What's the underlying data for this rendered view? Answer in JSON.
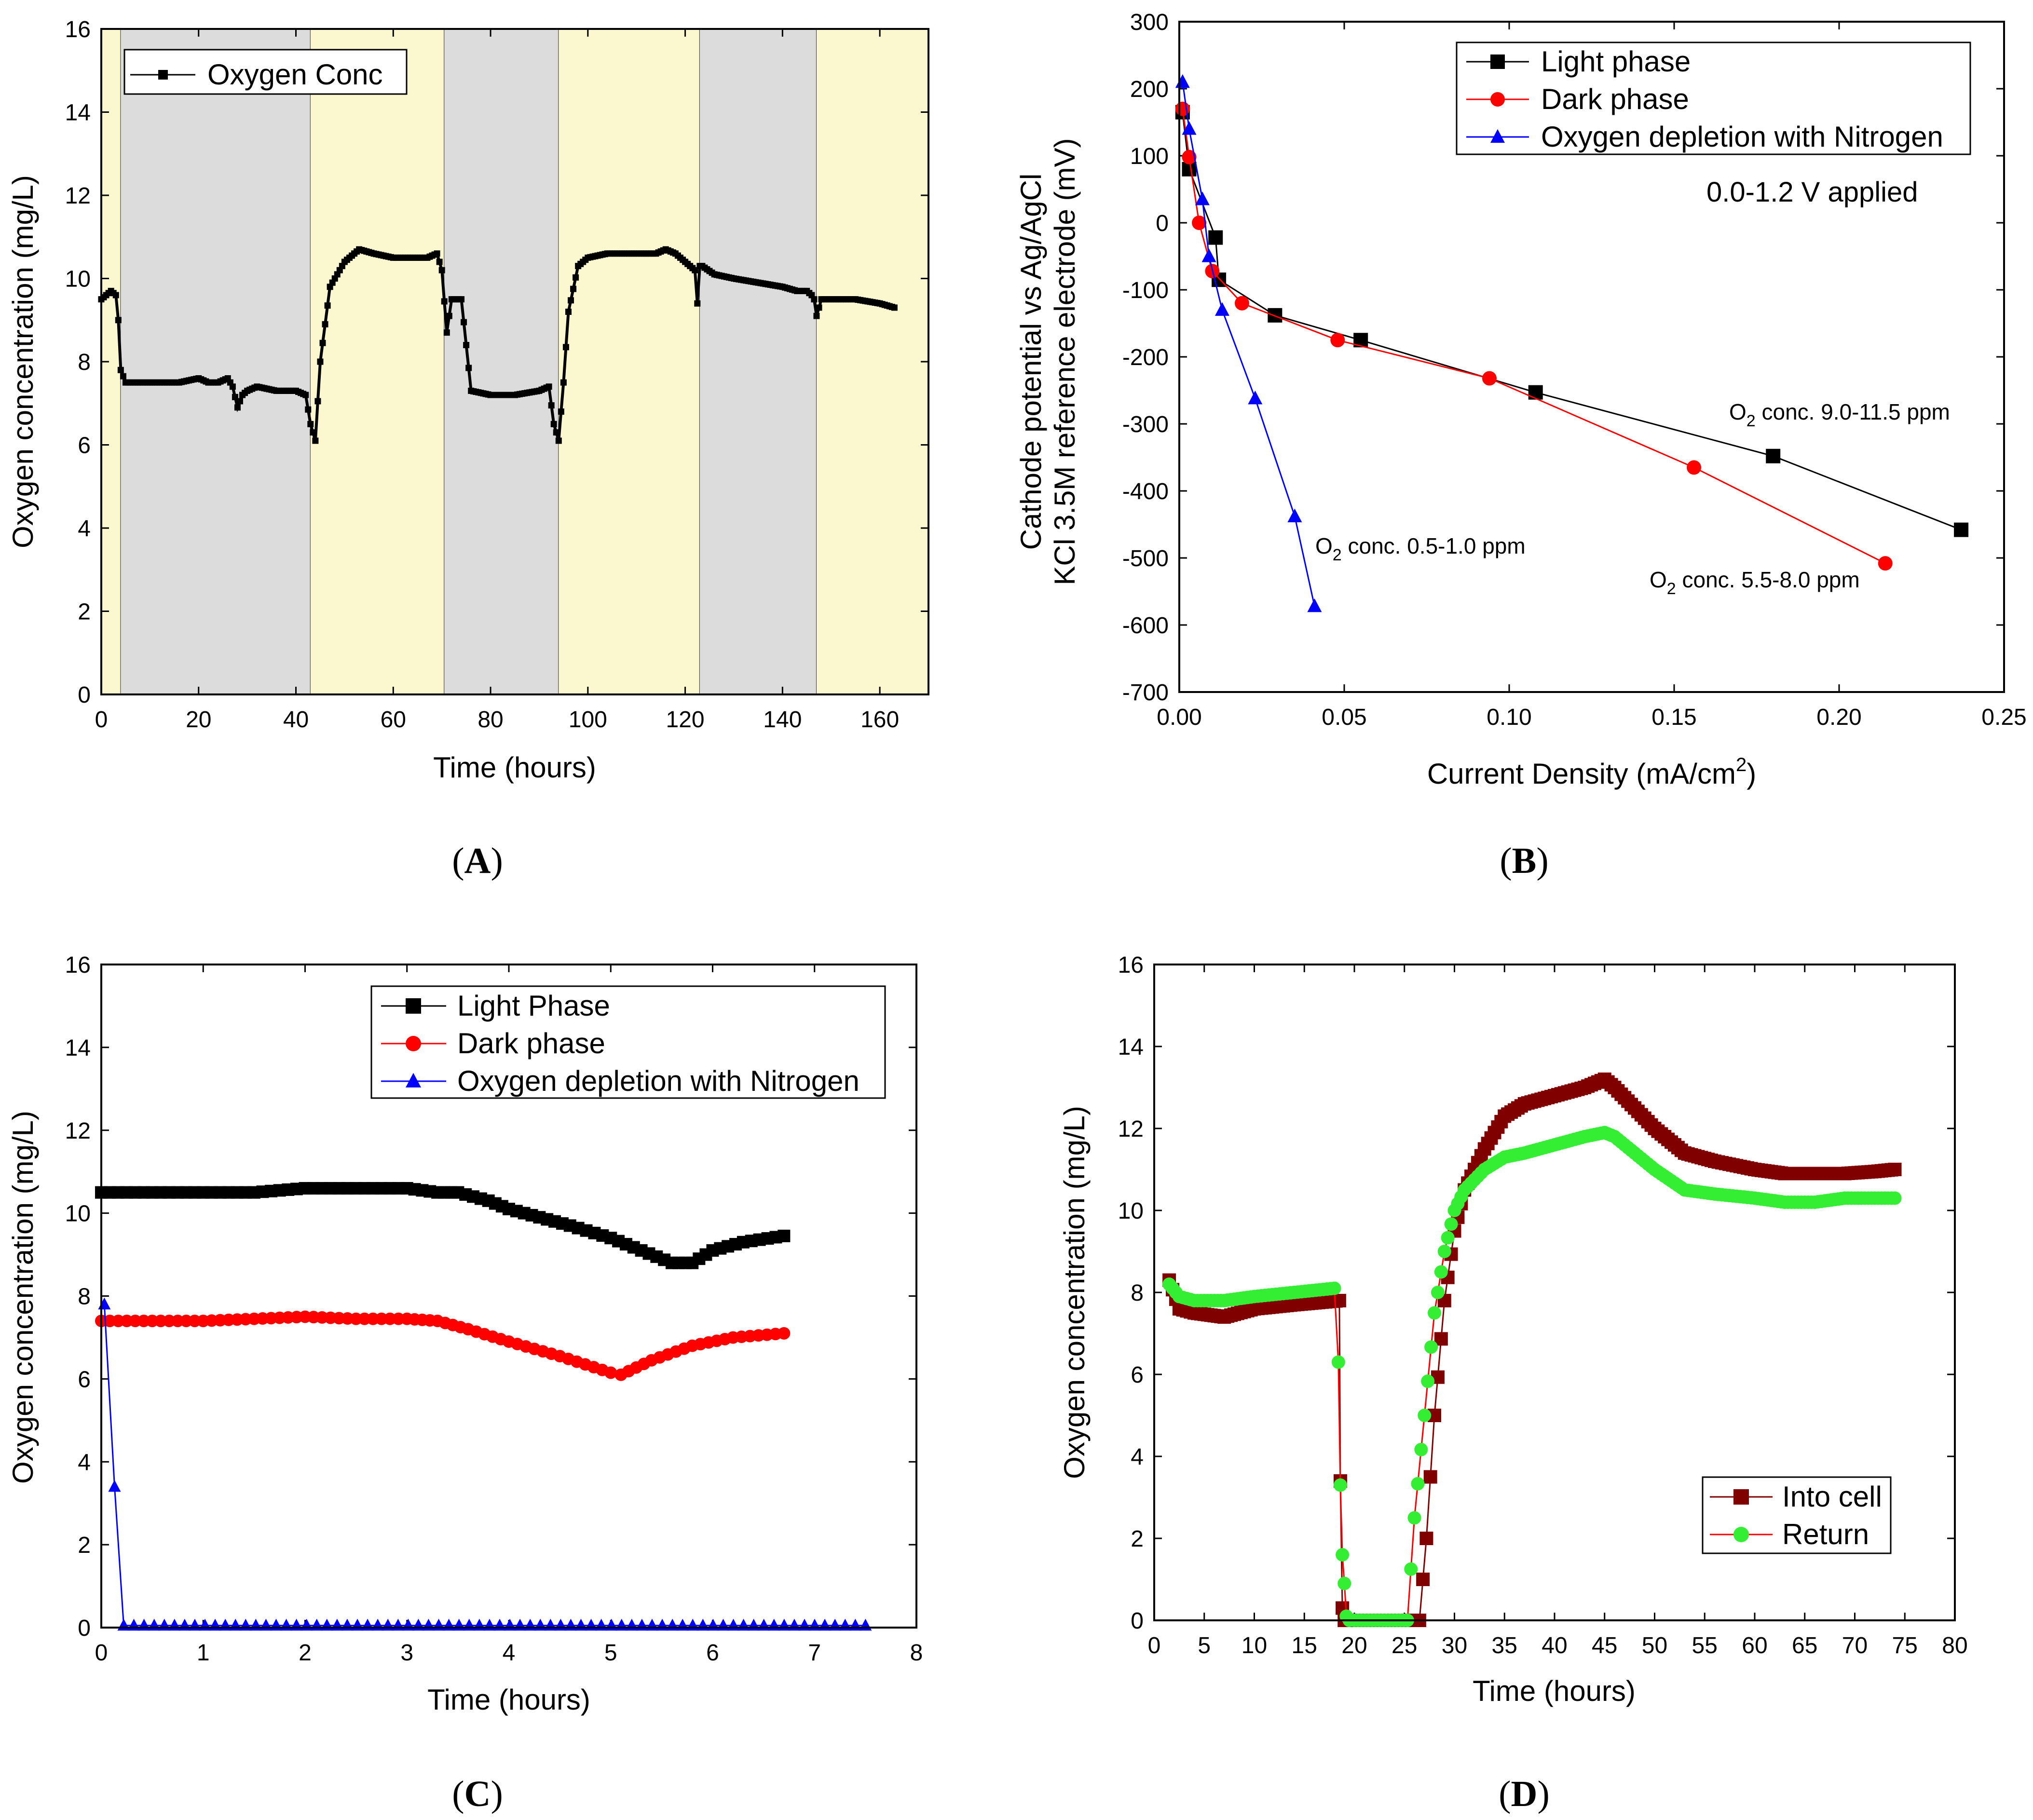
{
  "chart_data": [
    {
      "panel": "(A)",
      "panel_letter": "A",
      "type": "line",
      "xlabel": "Time (hours)",
      "ylabel": "Oxygen concentration (mg/L)",
      "xlim": [
        0,
        170
      ],
      "ylim": [
        0,
        16
      ],
      "xticks": [
        0,
        20,
        40,
        60,
        80,
        100,
        120,
        140,
        160
      ],
      "yticks": [
        0,
        2,
        4,
        6,
        8,
        10,
        12,
        14,
        16
      ],
      "legend": [
        "Oxygen Conc"
      ],
      "background_bands": [
        {
          "from": 0,
          "to": 4,
          "phase": "light",
          "color": "#fbf8cf"
        },
        {
          "from": 4,
          "to": 43,
          "phase": "dark",
          "color": "#dcdcdc"
        },
        {
          "from": 43,
          "to": 70.5,
          "phase": "light",
          "color": "#fbf8cf"
        },
        {
          "from": 70.5,
          "to": 94,
          "phase": "dark",
          "color": "#dcdcdc"
        },
        {
          "from": 94,
          "to": 123,
          "phase": "light",
          "color": "#fbf8cf"
        },
        {
          "from": 123,
          "to": 147,
          "phase": "dark",
          "color": "#dcdcdc"
        },
        {
          "from": 147,
          "to": 170,
          "phase": "light",
          "color": "#fbf8cf"
        }
      ],
      "series": [
        {
          "name": "Oxygen Conc",
          "color": "#000000",
          "x": [
            0,
            1,
            2,
            3,
            3.5,
            4,
            5,
            8,
            12,
            16,
            20,
            22,
            24,
            26,
            27,
            28,
            29,
            30,
            32,
            36,
            40,
            42,
            43,
            44,
            45,
            47,
            50,
            53,
            56,
            60,
            64,
            67,
            69,
            70,
            71,
            72,
            74,
            76,
            80,
            85,
            90,
            92,
            93,
            94,
            95,
            96,
            98,
            100,
            104,
            110,
            114,
            116,
            118,
            120,
            122,
            122.5,
            123,
            123.5,
            126,
            130,
            135,
            140,
            143,
            145,
            146,
            146.5,
            147,
            148,
            150,
            155,
            160,
            163
          ],
          "y": [
            9.5,
            9.6,
            9.7,
            9.6,
            9.0,
            7.8,
            7.5,
            7.5,
            7.5,
            7.5,
            7.6,
            7.5,
            7.5,
            7.6,
            7.4,
            6.9,
            7.2,
            7.3,
            7.4,
            7.3,
            7.3,
            7.2,
            6.5,
            6.1,
            8.0,
            9.8,
            10.4,
            10.7,
            10.6,
            10.5,
            10.5,
            10.5,
            10.6,
            10.2,
            8.7,
            9.5,
            9.5,
            7.3,
            7.2,
            7.2,
            7.3,
            7.4,
            6.5,
            6.1,
            7.5,
            9.2,
            10.3,
            10.5,
            10.6,
            10.6,
            10.6,
            10.7,
            10.6,
            10.4,
            10.2,
            9.4,
            10.3,
            10.3,
            10.1,
            10.0,
            9.9,
            9.8,
            9.7,
            9.7,
            9.6,
            9.5,
            9.1,
            9.5,
            9.5,
            9.5,
            9.4,
            9.3
          ]
        }
      ]
    },
    {
      "panel": "(B)",
      "panel_letter": "B",
      "type": "line",
      "xlabel": "Current Density (mA/cm",
      "xlabel_sup": "2",
      "xlabel_end": ")",
      "ylabel_line1": "Cathode potential vs Ag/AgCl",
      "ylabel_line2": "KCl 3.5M reference electrode (mV)",
      "xlim": [
        0,
        0.25
      ],
      "ylim": [
        -700,
        300
      ],
      "xticks": [
        "0.00",
        "0.05",
        "0.10",
        "0.15",
        "0.20",
        "0.25"
      ],
      "yticks": [
        300,
        200,
        100,
        0,
        -100,
        -200,
        -300,
        -400,
        -500,
        -600,
        -700
      ],
      "series": [
        {
          "name": "Light phase",
          "color": "#000000",
          "marker": "square",
          "x": [
            0.001,
            0.003,
            0.011,
            0.012,
            0.029,
            0.055,
            0.108,
            0.18,
            0.237
          ],
          "y": [
            165,
            80,
            -22,
            -85,
            -138,
            -175,
            -253,
            -348,
            -458
          ]
        },
        {
          "name": "Dark phase",
          "color": "#ff0000",
          "marker": "circle",
          "x": [
            0.001,
            0.003,
            0.006,
            0.01,
            0.019,
            0.048,
            0.094,
            0.156,
            0.214
          ],
          "y": [
            170,
            98,
            0,
            -72,
            -120,
            -175,
            -232,
            -365,
            -508
          ]
        },
        {
          "name": "Oxygen depletion with Nitrogen",
          "color": "#0000ff",
          "marker": "triangle",
          "x": [
            0.001,
            0.003,
            0.007,
            0.009,
            0.013,
            0.023,
            0.035,
            0.041
          ],
          "y": [
            210,
            140,
            35,
            -50,
            -130,
            -262,
            -438,
            -572
          ]
        }
      ],
      "annotations": {
        "applied": "0.0-1.2 V applied",
        "light_conc": {
          "prefix": "O",
          "sub": "2",
          "text": " conc. 9.0-11.5 ppm"
        },
        "dark_conc": {
          "prefix": "O",
          "sub": "2",
          "text": " conc. 5.5-8.0 ppm"
        },
        "nitrogen_conc": {
          "prefix": "O",
          "sub": "2",
          "text": " conc. 0.5-1.0 ppm"
        }
      }
    },
    {
      "panel": "(C)",
      "panel_letter": "C",
      "type": "line",
      "xlabel": "Time (hours)",
      "ylabel": "Oxygen concentration (mg/L)",
      "xlim": [
        0,
        8
      ],
      "ylim": [
        0,
        16
      ],
      "xticks": [
        0,
        1,
        2,
        3,
        4,
        5,
        6,
        7,
        8
      ],
      "yticks": [
        0,
        2,
        4,
        6,
        8,
        10,
        12,
        14,
        16
      ],
      "series": [
        {
          "name": "Light Phase",
          "color": "#000000",
          "marker": "square",
          "x": [
            0,
            0.5,
            1.0,
            1.5,
            2.0,
            2.5,
            3.0,
            3.3,
            3.5,
            3.8,
            4.0,
            4.3,
            4.6,
            5.0,
            5.3,
            5.6,
            5.8,
            6.0,
            6.3,
            6.7
          ],
          "y": [
            10.5,
            10.5,
            10.5,
            10.5,
            10.6,
            10.6,
            10.6,
            10.5,
            10.5,
            10.3,
            10.1,
            9.9,
            9.7,
            9.4,
            9.1,
            8.8,
            8.8,
            9.1,
            9.3,
            9.45
          ]
        },
        {
          "name": "Dark phase",
          "color": "#ff0000",
          "marker": "circle",
          "x": [
            0,
            0.5,
            1.0,
            1.5,
            2.0,
            2.5,
            3.0,
            3.3,
            3.6,
            4.0,
            4.5,
            5.0,
            5.1,
            5.4,
            5.8,
            6.2,
            6.7
          ],
          "y": [
            7.4,
            7.4,
            7.4,
            7.45,
            7.5,
            7.45,
            7.45,
            7.4,
            7.2,
            6.9,
            6.55,
            6.15,
            6.1,
            6.45,
            6.8,
            7.0,
            7.1
          ],
          "marker_step": 0.08
        },
        {
          "name": "Oxygen depletion with Nitrogen",
          "color": "#0000ff",
          "marker": "triangle",
          "x": [
            0.03,
            0.13,
            0.22,
            7.5
          ],
          "y": [
            7.8,
            3.4,
            0.05,
            0.05
          ],
          "marker_step": 0.1
        }
      ]
    },
    {
      "panel": "(D)",
      "panel_letter": "D",
      "type": "line",
      "xlabel": "Time (hours)",
      "ylabel": "Oxygen concentration (mg/L)",
      "xlim": [
        0,
        80
      ],
      "ylim": [
        0,
        16
      ],
      "xticks": [
        0,
        5,
        10,
        15,
        20,
        25,
        30,
        35,
        40,
        45,
        50,
        55,
        60,
        65,
        70,
        75,
        80
      ],
      "yticks": [
        0,
        2,
        4,
        6,
        8,
        10,
        12,
        14,
        16
      ],
      "series": [
        {
          "name": "Into cell",
          "color": "#800000",
          "marker": "square",
          "x": [
            1.5,
            2.5,
            4,
            7,
            10,
            14,
            18.5,
            18.6,
            18.8,
            19.0,
            19.3,
            20,
            25,
            26.5,
            27.2,
            28,
            29,
            30,
            31,
            33,
            35,
            37,
            40,
            43,
            45,
            46,
            48,
            50,
            53,
            56,
            60,
            63,
            66,
            69,
            72,
            74
          ],
          "y": [
            8.3,
            7.6,
            7.5,
            7.4,
            7.6,
            7.7,
            7.8,
            3.4,
            0.3,
            0.0,
            0.0,
            0.0,
            0.0,
            0.0,
            2.0,
            5.0,
            7.8,
            9.5,
            10.5,
            11.5,
            12.3,
            12.6,
            12.8,
            13.0,
            13.2,
            13.0,
            12.5,
            12.0,
            11.4,
            11.2,
            11.0,
            10.9,
            10.9,
            10.9,
            10.95,
            11.0
          ],
          "marker_step": 0.35
        },
        {
          "name": "Return",
          "color": "#33ee33",
          "line_color": "#ff0000",
          "marker": "circle",
          "x": [
            1.5,
            2.5,
            4,
            7,
            10,
            14,
            18.0,
            18.4,
            18.6,
            18.8,
            19.0,
            19.2,
            19.5,
            20,
            25.3,
            26,
            27,
            28,
            29,
            30,
            31,
            33,
            35,
            37,
            40,
            43,
            45,
            46,
            48,
            50,
            53,
            56,
            60,
            63,
            66,
            69,
            72,
            74
          ],
          "y": [
            8.2,
            7.9,
            7.8,
            7.8,
            7.9,
            8.0,
            8.1,
            6.3,
            3.3,
            1.6,
            0.9,
            0.1,
            0.0,
            0.0,
            0.0,
            2.5,
            5.0,
            7.5,
            9.0,
            10.0,
            10.5,
            11.0,
            11.3,
            11.4,
            11.6,
            11.8,
            11.9,
            11.8,
            11.4,
            11.0,
            10.5,
            10.4,
            10.3,
            10.2,
            10.2,
            10.3,
            10.3,
            10.3
          ],
          "marker_step": 0.35
        }
      ]
    }
  ]
}
